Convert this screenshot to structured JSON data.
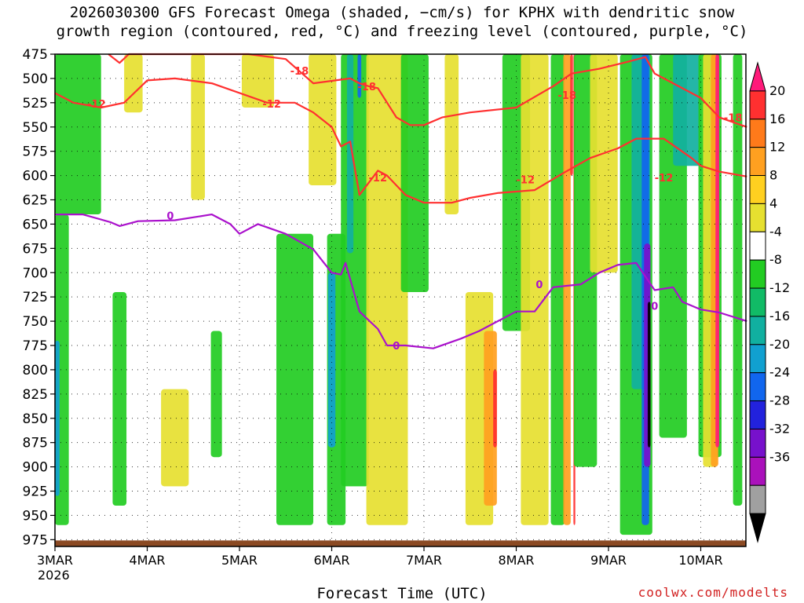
{
  "title_line1": "2026030300 GFS Forecast Omega (shaded, −cm/s) for KPHX with dendritic snow",
  "title_line2": "growth region (contoured, red, °C) and freezing level (contoured, purple, °C)",
  "xlabel": "Forecast Time (UTC)",
  "credit": "coolwx.com/modelts",
  "chart_data": {
    "type": "heatmap",
    "y_axis": {
      "label": "",
      "ticks": [
        475,
        500,
        525,
        550,
        575,
        600,
        625,
        650,
        675,
        700,
        725,
        750,
        775,
        800,
        825,
        850,
        875,
        900,
        925,
        950,
        975
      ],
      "range": [
        475,
        982
      ],
      "inverted": true
    },
    "x_axis": {
      "ticks": [
        "3MAR",
        "4MAR",
        "5MAR",
        "6MAR",
        "7MAR",
        "8MAR",
        "9MAR",
        "10MAR"
      ],
      "sub_label": "2026",
      "range_days": [
        0,
        7.5
      ]
    },
    "grid": true,
    "colorbar": {
      "labels": [
        20,
        16,
        12,
        8,
        4,
        -4,
        -8,
        -12,
        -16,
        -20,
        -24,
        -28,
        -32,
        -36
      ],
      "colors": [
        "#ff1a7a",
        "#ff3030",
        "#ff7a1a",
        "#ffa020",
        "#ffd020",
        "#e6e030",
        "#ffffff",
        "#22cc22",
        "#11bb66",
        "#11b0a0",
        "#11a0d0",
        "#1166ee",
        "#2222dd",
        "#7711cc",
        "#aa11bb",
        "#a0a0a0",
        "#000000"
      ]
    },
    "omega_bands": [
      {
        "day": 0.0,
        "w": 0.3,
        "top": 640,
        "bot": 960,
        "c": "g"
      },
      {
        "day": 0.02,
        "w": 0.06,
        "top": 770,
        "bot": 930,
        "c": "b"
      },
      {
        "day": 0.25,
        "w": 0.5,
        "top": 475,
        "bot": 640,
        "c": "g"
      },
      {
        "day": 0.7,
        "w": 0.15,
        "top": 720,
        "bot": 940,
        "c": "g"
      },
      {
        "day": 0.85,
        "w": 0.2,
        "top": 475,
        "bot": 535,
        "c": "y"
      },
      {
        "day": 1.3,
        "w": 0.3,
        "top": 820,
        "bot": 920,
        "c": "y"
      },
      {
        "day": 1.55,
        "w": 0.15,
        "top": 475,
        "bot": 625,
        "c": "y"
      },
      {
        "day": 1.75,
        "w": 0.12,
        "top": 760,
        "bot": 890,
        "c": "g"
      },
      {
        "day": 2.2,
        "w": 0.35,
        "top": 475,
        "bot": 530,
        "c": "y"
      },
      {
        "day": 2.6,
        "w": 0.4,
        "top": 660,
        "bot": 960,
        "c": "g"
      },
      {
        "day": 2.9,
        "w": 0.3,
        "top": 475,
        "bot": 610,
        "c": "y"
      },
      {
        "day": 3.05,
        "w": 0.2,
        "top": 660,
        "bot": 960,
        "c": "g"
      },
      {
        "day": 3.0,
        "w": 0.08,
        "top": 700,
        "bot": 880,
        "c": "b"
      },
      {
        "day": 3.25,
        "w": 0.3,
        "top": 475,
        "bot": 920,
        "c": "g"
      },
      {
        "day": 3.2,
        "w": 0.07,
        "top": 475,
        "bot": 680,
        "c": "t"
      },
      {
        "day": 3.3,
        "w": 0.04,
        "top": 475,
        "bot": 520,
        "c": "bl"
      },
      {
        "day": 3.6,
        "w": 0.45,
        "top": 475,
        "bot": 960,
        "c": "y"
      },
      {
        "day": 3.9,
        "w": 0.3,
        "top": 475,
        "bot": 720,
        "c": "g"
      },
      {
        "day": 4.3,
        "w": 0.15,
        "top": 475,
        "bot": 640,
        "c": "y"
      },
      {
        "day": 4.6,
        "w": 0.3,
        "top": 720,
        "bot": 960,
        "c": "y"
      },
      {
        "day": 4.72,
        "w": 0.14,
        "top": 760,
        "bot": 940,
        "c": "o"
      },
      {
        "day": 4.77,
        "w": 0.04,
        "top": 800,
        "bot": 880,
        "c": "r"
      },
      {
        "day": 5.0,
        "w": 0.3,
        "top": 475,
        "bot": 760,
        "c": "g"
      },
      {
        "day": 5.2,
        "w": 0.3,
        "top": 475,
        "bot": 960,
        "c": "y"
      },
      {
        "day": 5.45,
        "w": 0.15,
        "top": 475,
        "bot": 960,
        "c": "g"
      },
      {
        "day": 5.55,
        "w": 0.08,
        "top": 475,
        "bot": 960,
        "c": "o"
      },
      {
        "day": 5.6,
        "w": 0.03,
        "top": 475,
        "bot": 600,
        "c": "r"
      },
      {
        "day": 5.63,
        "w": 0.02,
        "top": 475,
        "bot": 960,
        "c": "r"
      },
      {
        "day": 5.75,
        "w": 0.25,
        "top": 475,
        "bot": 900,
        "c": "g"
      },
      {
        "day": 5.95,
        "w": 0.3,
        "top": 475,
        "bot": 700,
        "c": "y"
      },
      {
        "day": 6.3,
        "w": 0.35,
        "top": 475,
        "bot": 970,
        "c": "g"
      },
      {
        "day": 6.35,
        "w": 0.2,
        "top": 475,
        "bot": 820,
        "c": "t"
      },
      {
        "day": 6.4,
        "w": 0.08,
        "top": 475,
        "bot": 960,
        "c": "bl"
      },
      {
        "day": 6.42,
        "w": 0.07,
        "top": 670,
        "bot": 900,
        "c": "p"
      },
      {
        "day": 6.44,
        "w": 0.03,
        "top": 730,
        "bot": 880,
        "c": "k"
      },
      {
        "day": 6.7,
        "w": 0.3,
        "top": 475,
        "bot": 870,
        "c": "g"
      },
      {
        "day": 6.85,
        "w": 0.3,
        "top": 475,
        "bot": 590,
        "c": "t"
      },
      {
        "day": 7.1,
        "w": 0.25,
        "top": 475,
        "bot": 890,
        "c": "g"
      },
      {
        "day": 7.1,
        "w": 0.15,
        "top": 475,
        "bot": 900,
        "c": "y"
      },
      {
        "day": 7.15,
        "w": 0.08,
        "top": 475,
        "bot": 900,
        "c": "o"
      },
      {
        "day": 7.18,
        "w": 0.04,
        "top": 475,
        "bot": 880,
        "c": "m"
      },
      {
        "day": 7.4,
        "w": 0.1,
        "top": 475,
        "bot": 940,
        "c": "g"
      }
    ],
    "series": [
      {
        "name": "-18",
        "color": "#ff3030",
        "points": [
          [
            0.58,
            475
          ],
          [
            0.7,
            484
          ],
          [
            0.8,
            475
          ],
          [
            2.1,
            475
          ],
          [
            2.5,
            480
          ],
          [
            2.8,
            505
          ],
          [
            3.2,
            500
          ],
          [
            3.3,
            505
          ],
          [
            3.4,
            508
          ],
          [
            3.5,
            510
          ],
          [
            3.6,
            525
          ],
          [
            3.7,
            540
          ],
          [
            3.85,
            548
          ],
          [
            4.0,
            548
          ],
          [
            4.2,
            540
          ],
          [
            4.5,
            535
          ],
          [
            5.0,
            530
          ],
          [
            5.4,
            508
          ],
          [
            5.6,
            495
          ],
          [
            5.9,
            490
          ],
          [
            6.2,
            483
          ],
          [
            6.4,
            478
          ],
          [
            6.5,
            495
          ],
          [
            6.6,
            500
          ],
          [
            7.0,
            520
          ],
          [
            7.2,
            540
          ],
          [
            7.5,
            550
          ]
        ],
        "labels": [
          [
            2.65,
            492
          ],
          [
            3.38,
            508
          ],
          [
            5.55,
            517
          ],
          [
            7.35,
            540
          ]
        ]
      },
      {
        "name": "-12",
        "color": "#ff3030",
        "points": [
          [
            0.0,
            515
          ],
          [
            0.2,
            525
          ],
          [
            0.5,
            530
          ],
          [
            0.75,
            525
          ],
          [
            1.0,
            502
          ],
          [
            1.3,
            500
          ],
          [
            1.7,
            505
          ],
          [
            2.3,
            525
          ],
          [
            2.6,
            525
          ],
          [
            2.8,
            535
          ],
          [
            3.0,
            550
          ],
          [
            3.1,
            570
          ],
          [
            3.2,
            565
          ],
          [
            3.3,
            620
          ],
          [
            3.5,
            595
          ],
          [
            3.6,
            600
          ],
          [
            3.8,
            620
          ],
          [
            4.0,
            628
          ],
          [
            4.3,
            628
          ],
          [
            4.5,
            623
          ],
          [
            4.8,
            618
          ],
          [
            5.2,
            615
          ],
          [
            5.5,
            598
          ],
          [
            5.8,
            582
          ],
          [
            6.1,
            572
          ],
          [
            6.3,
            562
          ],
          [
            6.6,
            562
          ],
          [
            6.9,
            582
          ],
          [
            7.0,
            590
          ],
          [
            7.2,
            596
          ],
          [
            7.5,
            601
          ]
        ],
        "labels": [
          [
            0.45,
            526
          ],
          [
            2.35,
            526
          ],
          [
            3.5,
            602
          ],
          [
            5.1,
            604
          ],
          [
            6.6,
            602
          ]
        ]
      },
      {
        "name": "0",
        "color": "#aa11cc",
        "points": [
          [
            0.0,
            640
          ],
          [
            0.3,
            640
          ],
          [
            0.6,
            648
          ],
          [
            0.7,
            652
          ],
          [
            0.9,
            647
          ],
          [
            1.3,
            646
          ],
          [
            1.7,
            640
          ],
          [
            1.9,
            650
          ],
          [
            2.0,
            660
          ],
          [
            2.2,
            650
          ],
          [
            2.5,
            660
          ],
          [
            2.8,
            676
          ],
          [
            3.0,
            700
          ],
          [
            3.1,
            702
          ],
          [
            3.15,
            690
          ],
          [
            3.3,
            740
          ],
          [
            3.5,
            758
          ],
          [
            3.6,
            775
          ],
          [
            3.8,
            775
          ],
          [
            4.1,
            778
          ],
          [
            4.4,
            768
          ],
          [
            4.6,
            760
          ],
          [
            5.0,
            740
          ],
          [
            5.2,
            740
          ],
          [
            5.4,
            715
          ],
          [
            5.7,
            712
          ],
          [
            5.9,
            700
          ],
          [
            6.1,
            692
          ],
          [
            6.3,
            690
          ],
          [
            6.5,
            718
          ],
          [
            6.7,
            715
          ],
          [
            6.8,
            730
          ],
          [
            7.0,
            738
          ],
          [
            7.2,
            741
          ],
          [
            7.5,
            750
          ]
        ],
        "labels": [
          [
            1.25,
            641
          ],
          [
            3.7,
            775
          ],
          [
            5.25,
            712
          ],
          [
            6.5,
            734
          ]
        ]
      }
    ]
  }
}
